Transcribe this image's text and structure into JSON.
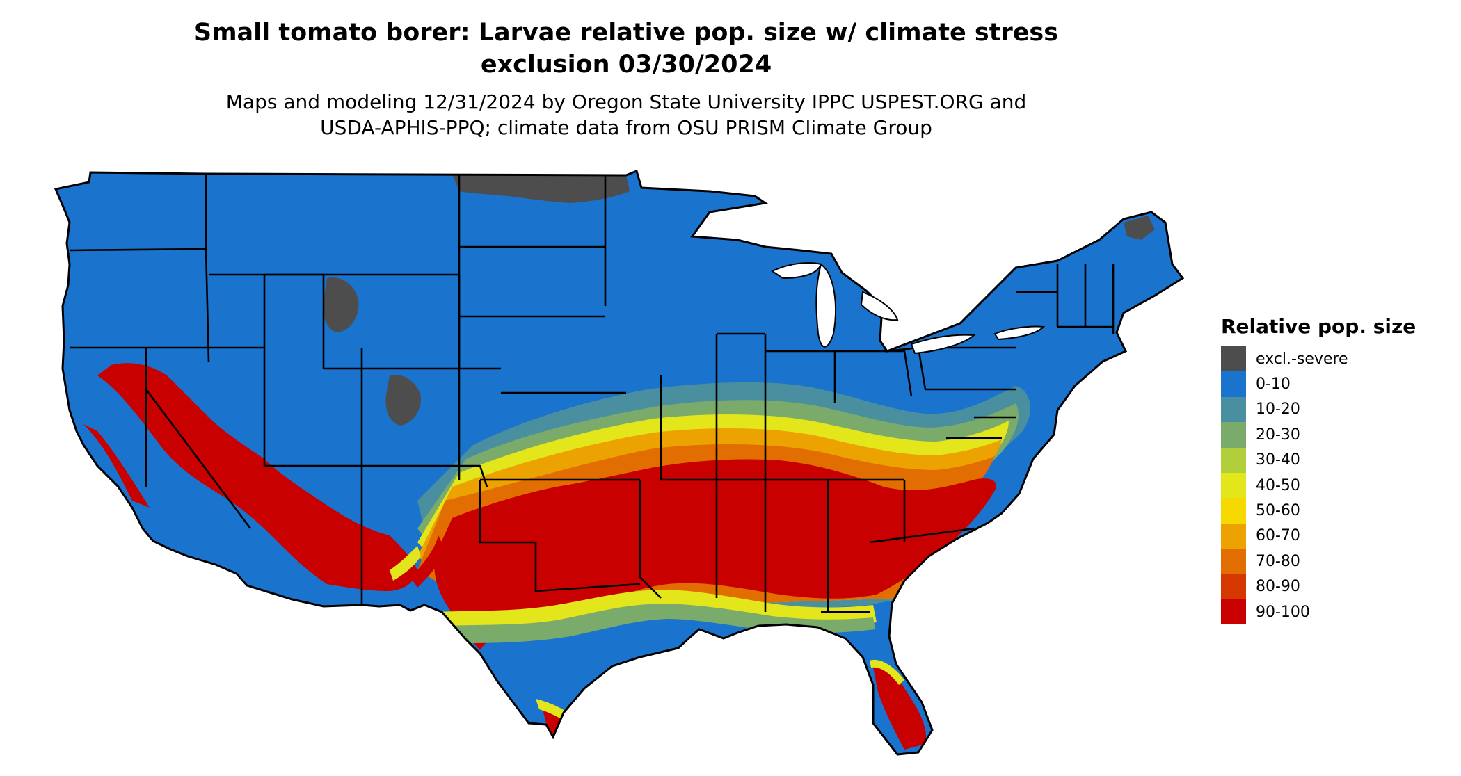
{
  "title": "Small tomato borer: Larvae relative pop. size w/ climate stress\nexclusion 03/30/2024",
  "subtitle": "Maps and modeling 12/31/2024 by Oregon State University IPPC USPEST.ORG and\nUSDA-APHIS-PPQ; climate data from OSU PRISM Climate Group",
  "legend": {
    "title": "Relative pop. size",
    "items": [
      {
        "label": "excl.-severe",
        "color": "#4d4d4d"
      },
      {
        "label": "0-10",
        "color": "#1a73cc"
      },
      {
        "label": "10-20",
        "color": "#4a8fa0"
      },
      {
        "label": "20-30",
        "color": "#7bab6a"
      },
      {
        "label": "30-40",
        "color": "#b0cf3a"
      },
      {
        "label": "40-50",
        "color": "#e3e61a"
      },
      {
        "label": "50-60",
        "color": "#f6d900"
      },
      {
        "label": "60-70",
        "color": "#eca200"
      },
      {
        "label": "70-80",
        "color": "#e26d00"
      },
      {
        "label": "80-90",
        "color": "#d43800"
      },
      {
        "label": "90-100",
        "color": "#c90000"
      }
    ]
  }
}
